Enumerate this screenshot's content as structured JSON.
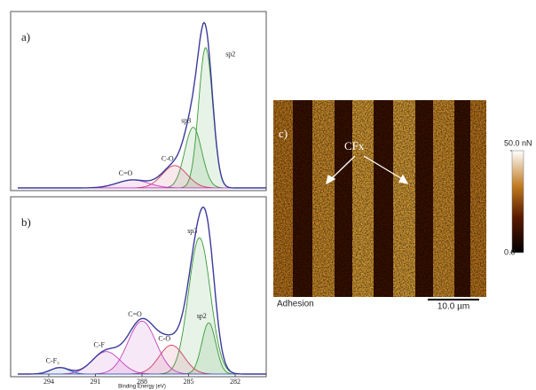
{
  "chart_data": [
    {
      "type": "line",
      "label": "a)",
      "xlim": [
        296,
        280
      ],
      "ylim": [
        0,
        1.05
      ],
      "envelope_color": "#3b3b9a",
      "series": [
        {
          "name": "sp2",
          "color": "#3a9a3a",
          "center": 283.9,
          "height": 0.88,
          "width": 0.45
        },
        {
          "name": "sp3",
          "color": "#3a9a3a",
          "center": 284.7,
          "height": 0.38,
          "width": 0.55
        },
        {
          "name": "C-O",
          "color": "#d04060",
          "center": 285.9,
          "height": 0.14,
          "width": 0.8
        },
        {
          "name": "C=O",
          "color": "#c040c0",
          "center": 288.6,
          "height": 0.05,
          "width": 1.0
        }
      ]
    },
    {
      "type": "line",
      "label": "b)",
      "x_label": "Binding Energy (eV)",
      "xlim": [
        296,
        280
      ],
      "ylim": [
        0,
        1.05
      ],
      "xticks": [
        294,
        291,
        288,
        285,
        282
      ],
      "envelope_color": "#3b3b9a",
      "series": [
        {
          "name": "sp3",
          "color": "#3a9a3a",
          "center": 284.3,
          "height": 0.85,
          "width": 0.7
        },
        {
          "name": "sp2",
          "color": "#3a9a3a",
          "center": 283.7,
          "height": 0.32,
          "width": 0.45
        },
        {
          "name": "C-O",
          "color": "#d04060",
          "center": 286.1,
          "height": 0.18,
          "width": 0.8
        },
        {
          "name": "C=O",
          "color": "#c040c0",
          "center": 288.0,
          "height": 0.33,
          "width": 0.9
        },
        {
          "name": "C-F",
          "color": "#c040c0",
          "center": 290.3,
          "height": 0.14,
          "width": 0.9
        },
        {
          "name": "C-F₂",
          "color": "#4060c0",
          "center": 293.3,
          "height": 0.04,
          "width": 0.6
        }
      ]
    },
    {
      "type": "image",
      "label": "c)",
      "annotation": "CFx",
      "caption": "Adhesion",
      "scale_bar": "10.0 µm",
      "colorbar": {
        "ylim": [
          0,
          50
        ],
        "yticks": [
          {
            "value": 50,
            "label": "50.0 nN"
          },
          {
            "value": 0,
            "label": "0.0"
          }
        ]
      }
    }
  ]
}
